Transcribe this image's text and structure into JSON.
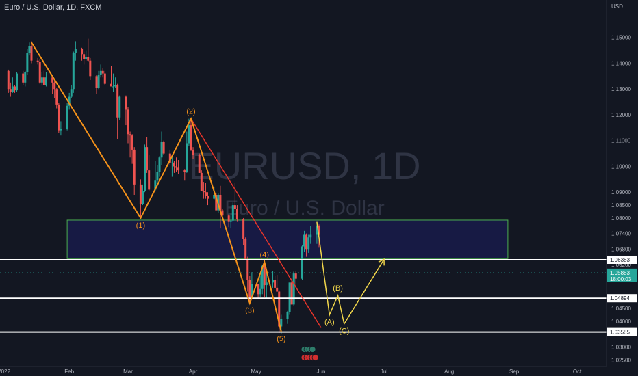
{
  "header": {
    "title": "Euro / U.S. Dollar, 1D, FXCM"
  },
  "chart_data": {
    "type": "candlestick",
    "symbol": "EURUSD",
    "interval": "1D",
    "watermark": {
      "line1": "EURUSD, 1D",
      "line2": "Euro / U.S. Dollar"
    },
    "currency": "USD",
    "ylim": [
      1.0225,
      1.1645
    ],
    "xlim": [
      "2021-12-30",
      "2022-10-15"
    ],
    "y_ticks": [
      1.15,
      1.14,
      1.13,
      1.12,
      1.11,
      1.1,
      1.09,
      1.085,
      1.08,
      1.074,
      1.068,
      1.062,
      1.045,
      1.04,
      1.03,
      1.025
    ],
    "y_tick_labels": [
      "1.15000",
      "1.14000",
      "1.13000",
      "1.12000",
      "1.11000",
      "1.10000",
      "1.09000",
      "1.08500",
      "1.08000",
      "1.07400",
      "1.06800",
      "1.06200",
      "1.04500",
      "1.04000",
      "1.03000",
      "1.02500"
    ],
    "x_ticks": [
      {
        "date": "2022-01-01",
        "label": "2022"
      },
      {
        "date": "2022-02-01",
        "label": "Feb"
      },
      {
        "date": "2022-03-01",
        "label": "Mar"
      },
      {
        "date": "2022-04-01",
        "label": "Apr"
      },
      {
        "date": "2022-05-01",
        "label": "May"
      },
      {
        "date": "2022-06-01",
        "label": "Jun"
      },
      {
        "date": "2022-07-01",
        "label": "Jul"
      },
      {
        "date": "2022-08-01",
        "label": "Aug"
      },
      {
        "date": "2022-09-01",
        "label": "Sep"
      },
      {
        "date": "2022-10-01",
        "label": "Oct"
      }
    ],
    "price_levels": [
      {
        "value": 1.06383,
        "label": "1.06383"
      },
      {
        "value": 1.04894,
        "label": "1.04894"
      },
      {
        "value": 1.03585,
        "label": "1.03585"
      }
    ],
    "current_price": {
      "value": 1.05883,
      "label": "1.05883",
      "countdown": "18:00:03"
    },
    "zone": {
      "from": "2022-01-31",
      "to": "2022-08-29",
      "top": 1.0792,
      "bottom": 1.0643
    },
    "trendline": {
      "start": {
        "date": "2022-03-31",
        "value": 1.1185
      },
      "end": {
        "date": "2022-06-01",
        "value": 1.0375
      }
    },
    "impulse_waves": [
      {
        "date": "2022-01-14",
        "value": 1.148
      },
      {
        "date": "2022-03-07",
        "value": 1.08,
        "label": "(1)"
      },
      {
        "date": "2022-03-31",
        "value": 1.1185,
        "label": "(2)"
      },
      {
        "date": "2022-04-28",
        "value": 1.047,
        "label": "(3)"
      },
      {
        "date": "2022-05-05",
        "value": 1.063,
        "label": "(4)"
      },
      {
        "date": "2022-05-13",
        "value": 1.036,
        "label": "(5)"
      }
    ],
    "corrective_waves": [
      {
        "date": "2022-05-30",
        "value": 1.0785
      },
      {
        "date": "2022-06-05",
        "value": 1.0425,
        "label": "(A)"
      },
      {
        "date": "2022-06-09",
        "value": 1.05,
        "label": "(B)"
      },
      {
        "date": "2022-06-12",
        "value": 1.039,
        "label": "(C)"
      },
      {
        "date": "2022-07-01",
        "value": 1.064
      }
    ],
    "colors": {
      "up": "#26a69a",
      "down": "#ef5350",
      "wave_impulse": "#f7931a",
      "wave_corrective": "#f2d74b",
      "trendline": "#e8352b",
      "zone_border": "#4caf50",
      "zone_fill": "#1a1c50",
      "level": "#ffffff",
      "background": "#131722"
    },
    "candles": [
      {
        "d": "2022-01-03",
        "o": 1.137,
        "h": 1.1375,
        "l": 1.1285,
        "c": 1.13
      },
      {
        "d": "2022-01-04",
        "o": 1.13,
        "h": 1.1325,
        "l": 1.127,
        "c": 1.129
      },
      {
        "d": "2022-01-05",
        "o": 1.129,
        "h": 1.1345,
        "l": 1.1285,
        "c": 1.131
      },
      {
        "d": "2022-01-06",
        "o": 1.131,
        "h": 1.1315,
        "l": 1.1285,
        "c": 1.1295
      },
      {
        "d": "2022-01-07",
        "o": 1.1295,
        "h": 1.1365,
        "l": 1.129,
        "c": 1.136
      },
      {
        "d": "2022-01-10",
        "o": 1.136,
        "h": 1.137,
        "l": 1.1315,
        "c": 1.1325
      },
      {
        "d": "2022-01-11",
        "o": 1.1325,
        "h": 1.137,
        "l": 1.131,
        "c": 1.1365
      },
      {
        "d": "2022-01-12",
        "o": 1.1365,
        "h": 1.1455,
        "l": 1.1355,
        "c": 1.144
      },
      {
        "d": "2022-01-13",
        "o": 1.144,
        "h": 1.148,
        "l": 1.143,
        "c": 1.1465
      },
      {
        "d": "2022-01-14",
        "o": 1.1465,
        "h": 1.1485,
        "l": 1.14,
        "c": 1.141
      },
      {
        "d": "2022-01-17",
        "o": 1.141,
        "h": 1.142,
        "l": 1.1395,
        "c": 1.1405
      },
      {
        "d": "2022-01-18",
        "o": 1.1405,
        "h": 1.1415,
        "l": 1.132,
        "c": 1.1325
      },
      {
        "d": "2022-01-19",
        "o": 1.1325,
        "h": 1.1365,
        "l": 1.1315,
        "c": 1.1345
      },
      {
        "d": "2022-01-20",
        "o": 1.1345,
        "h": 1.137,
        "l": 1.132,
        "c": 1.1315
      },
      {
        "d": "2022-01-21",
        "o": 1.1315,
        "h": 1.1365,
        "l": 1.131,
        "c": 1.1345
      },
      {
        "d": "2022-01-24",
        "o": 1.1345,
        "h": 1.135,
        "l": 1.128,
        "c": 1.1325
      },
      {
        "d": "2022-01-25",
        "o": 1.1325,
        "h": 1.1335,
        "l": 1.1265,
        "c": 1.13
      },
      {
        "d": "2022-01-26",
        "o": 1.13,
        "h": 1.1305,
        "l": 1.1225,
        "c": 1.124
      },
      {
        "d": "2022-01-27",
        "o": 1.124,
        "h": 1.1245,
        "l": 1.113,
        "c": 1.114
      },
      {
        "d": "2022-01-28",
        "o": 1.114,
        "h": 1.1175,
        "l": 1.112,
        "c": 1.1145
      },
      {
        "d": "2022-01-31",
        "o": 1.1145,
        "h": 1.1245,
        "l": 1.114,
        "c": 1.1235
      },
      {
        "d": "2022-02-01",
        "o": 1.1235,
        "h": 1.1285,
        "l": 1.122,
        "c": 1.127
      },
      {
        "d": "2022-02-02",
        "o": 1.127,
        "h": 1.1315,
        "l": 1.1265,
        "c": 1.13
      },
      {
        "d": "2022-02-03",
        "o": 1.13,
        "h": 1.1445,
        "l": 1.1285,
        "c": 1.144
      },
      {
        "d": "2022-02-04",
        "o": 1.144,
        "h": 1.1485,
        "l": 1.141,
        "c": 1.1455
      },
      {
        "d": "2022-02-07",
        "o": 1.1455,
        "h": 1.146,
        "l": 1.141,
        "c": 1.1435
      },
      {
        "d": "2022-02-08",
        "o": 1.1435,
        "h": 1.1445,
        "l": 1.1395,
        "c": 1.1415
      },
      {
        "d": "2022-02-09",
        "o": 1.1415,
        "h": 1.145,
        "l": 1.141,
        "c": 1.1425
      },
      {
        "d": "2022-02-10",
        "o": 1.1425,
        "h": 1.1495,
        "l": 1.1405,
        "c": 1.141
      },
      {
        "d": "2022-02-11",
        "o": 1.141,
        "h": 1.142,
        "l": 1.1335,
        "c": 1.135
      },
      {
        "d": "2022-02-14",
        "o": 1.135,
        "h": 1.1355,
        "l": 1.128,
        "c": 1.1305
      },
      {
        "d": "2022-02-15",
        "o": 1.1305,
        "h": 1.137,
        "l": 1.13,
        "c": 1.1355
      },
      {
        "d": "2022-02-16",
        "o": 1.1355,
        "h": 1.1395,
        "l": 1.1345,
        "c": 1.137
      },
      {
        "d": "2022-02-17",
        "o": 1.137,
        "h": 1.138,
        "l": 1.1345,
        "c": 1.136
      },
      {
        "d": "2022-02-18",
        "o": 1.136,
        "h": 1.137,
        "l": 1.1315,
        "c": 1.132
      },
      {
        "d": "2022-02-21",
        "o": 1.132,
        "h": 1.139,
        "l": 1.131,
        "c": 1.131
      },
      {
        "d": "2022-02-22",
        "o": 1.131,
        "h": 1.136,
        "l": 1.129,
        "c": 1.131
      },
      {
        "d": "2022-02-23",
        "o": 1.131,
        "h": 1.1345,
        "l": 1.1305,
        "c": 1.1315
      },
      {
        "d": "2022-02-24",
        "o": 1.1315,
        "h": 1.132,
        "l": 1.1105,
        "c": 1.119
      },
      {
        "d": "2022-02-25",
        "o": 1.119,
        "h": 1.1275,
        "l": 1.118,
        "c": 1.127
      },
      {
        "d": "2022-02-28",
        "o": 1.127,
        "h": 1.1275,
        "l": 1.116,
        "c": 1.122
      },
      {
        "d": "2022-03-01",
        "o": 1.122,
        "h": 1.123,
        "l": 1.109,
        "c": 1.1125
      },
      {
        "d": "2022-03-02",
        "o": 1.1125,
        "h": 1.1135,
        "l": 1.1035,
        "c": 1.112
      },
      {
        "d": "2022-03-03",
        "o": 1.112,
        "h": 1.1125,
        "l": 1.101,
        "c": 1.1065
      },
      {
        "d": "2022-03-04",
        "o": 1.1065,
        "h": 1.1075,
        "l": 1.089,
        "c": 1.093
      },
      {
        "d": "2022-03-07",
        "o": 1.093,
        "h": 1.095,
        "l": 1.0805,
        "c": 1.0855
      },
      {
        "d": "2022-03-08",
        "o": 1.0855,
        "h": 1.093,
        "l": 1.085,
        "c": 1.0905
      },
      {
        "d": "2022-03-09",
        "o": 1.0905,
        "h": 1.1085,
        "l": 1.09,
        "c": 1.1075
      },
      {
        "d": "2022-03-10",
        "o": 1.1075,
        "h": 1.1115,
        "l": 1.0975,
        "c": 1.0985
      },
      {
        "d": "2022-03-11",
        "o": 1.0985,
        "h": 1.1045,
        "l": 1.0905,
        "c": 1.091
      },
      {
        "d": "2022-03-14",
        "o": 1.091,
        "h": 1.102,
        "l": 1.0905,
        "c": 1.0945
      },
      {
        "d": "2022-03-15",
        "o": 1.0945,
        "h": 1.1005,
        "l": 1.0935,
        "c": 1.098
      },
      {
        "d": "2022-03-16",
        "o": 1.098,
        "h": 1.104,
        "l": 1.096,
        "c": 1.1035
      },
      {
        "d": "2022-03-17",
        "o": 1.1035,
        "h": 1.1135,
        "l": 1.1005,
        "c": 1.1095
      },
      {
        "d": "2022-03-18",
        "o": 1.1095,
        "h": 1.11,
        "l": 1.1045,
        "c": 1.105
      },
      {
        "d": "2022-03-21",
        "o": 1.105,
        "h": 1.1065,
        "l": 1.1005,
        "c": 1.1015
      },
      {
        "d": "2022-03-22",
        "o": 1.1015,
        "h": 1.1045,
        "l": 1.096,
        "c": 1.1015
      },
      {
        "d": "2022-03-23",
        "o": 1.1015,
        "h": 1.102,
        "l": 1.0975,
        "c": 1.1
      },
      {
        "d": "2022-03-24",
        "o": 1.1,
        "h": 1.1035,
        "l": 1.098,
        "c": 1.0995
      },
      {
        "d": "2022-03-25",
        "o": 1.0995,
        "h": 1.1025,
        "l": 1.097,
        "c": 1.0985
      },
      {
        "d": "2022-03-28",
        "o": 1.0985,
        "h": 1.099,
        "l": 1.0945,
        "c": 1.098
      },
      {
        "d": "2022-03-29",
        "o": 1.098,
        "h": 1.1135,
        "l": 1.0975,
        "c": 1.109
      },
      {
        "d": "2022-03-30",
        "o": 1.109,
        "h": 1.1185,
        "l": 1.108,
        "c": 1.116
      },
      {
        "d": "2022-03-31",
        "o": 1.116,
        "h": 1.1185,
        "l": 1.106,
        "c": 1.1065
      },
      {
        "d": "2022-04-01",
        "o": 1.1065,
        "h": 1.1075,
        "l": 1.103,
        "c": 1.1045
      },
      {
        "d": "2022-04-04",
        "o": 1.1045,
        "h": 1.105,
        "l": 1.0975,
        "c": 1.0975
      },
      {
        "d": "2022-04-05",
        "o": 1.0975,
        "h": 1.0985,
        "l": 1.0905,
        "c": 1.0905
      },
      {
        "d": "2022-04-06",
        "o": 1.0905,
        "h": 1.094,
        "l": 1.0875,
        "c": 1.09
      },
      {
        "d": "2022-04-07",
        "o": 1.09,
        "h": 1.0935,
        "l": 1.0875,
        "c": 1.0885
      },
      {
        "d": "2022-04-08",
        "o": 1.0885,
        "h": 1.09,
        "l": 1.085,
        "c": 1.0875
      },
      {
        "d": "2022-04-11",
        "o": 1.0875,
        "h": 1.092,
        "l": 1.087,
        "c": 1.089
      },
      {
        "d": "2022-04-12",
        "o": 1.089,
        "h": 1.0895,
        "l": 1.0835,
        "c": 1.083
      },
      {
        "d": "2022-04-13",
        "o": 1.083,
        "h": 1.0895,
        "l": 1.082,
        "c": 1.089
      },
      {
        "d": "2022-04-14",
        "o": 1.089,
        "h": 1.0925,
        "l": 1.076,
        "c": 1.083
      },
      {
        "d": "2022-04-15",
        "o": 1.083,
        "h": 1.0835,
        "l": 1.08,
        "c": 1.081
      },
      {
        "d": "2022-04-18",
        "o": 1.081,
        "h": 1.0815,
        "l": 1.0765,
        "c": 1.0785
      },
      {
        "d": "2022-04-19",
        "o": 1.0785,
        "h": 1.081,
        "l": 1.076,
        "c": 1.079
      },
      {
        "d": "2022-04-20",
        "o": 1.079,
        "h": 1.086,
        "l": 1.0785,
        "c": 1.085
      },
      {
        "d": "2022-04-21",
        "o": 1.085,
        "h": 1.0935,
        "l": 1.0825,
        "c": 1.0835
      },
      {
        "d": "2022-04-22",
        "o": 1.0835,
        "h": 1.085,
        "l": 1.0785,
        "c": 1.0795
      },
      {
        "d": "2022-04-25",
        "o": 1.0795,
        "h": 1.08,
        "l": 1.0695,
        "c": 1.072
      },
      {
        "d": "2022-04-26",
        "o": 1.072,
        "h": 1.0725,
        "l": 1.064,
        "c": 1.064
      },
      {
        "d": "2022-04-27",
        "o": 1.064,
        "h": 1.065,
        "l": 1.0515,
        "c": 1.056
      },
      {
        "d": "2022-04-28",
        "o": 1.056,
        "h": 1.0575,
        "l": 1.047,
        "c": 1.0495
      },
      {
        "d": "2022-04-29",
        "o": 1.0495,
        "h": 1.059,
        "l": 1.049,
        "c": 1.0545
      },
      {
        "d": "2022-05-02",
        "o": 1.0545,
        "h": 1.0545,
        "l": 1.049,
        "c": 1.0505
      },
      {
        "d": "2022-05-03",
        "o": 1.0505,
        "h": 1.0575,
        "l": 1.0495,
        "c": 1.0525
      },
      {
        "d": "2022-05-04",
        "o": 1.0525,
        "h": 1.062,
        "l": 1.0505,
        "c": 1.0615
      },
      {
        "d": "2022-05-05",
        "o": 1.0615,
        "h": 1.064,
        "l": 1.0495,
        "c": 1.054
      },
      {
        "d": "2022-05-06",
        "o": 1.054,
        "h": 1.0595,
        "l": 1.0485,
        "c": 1.055
      },
      {
        "d": "2022-05-09",
        "o": 1.055,
        "h": 1.0595,
        "l": 1.053,
        "c": 1.056
      },
      {
        "d": "2022-05-10",
        "o": 1.056,
        "h": 1.0575,
        "l": 1.0525,
        "c": 1.053
      },
      {
        "d": "2022-05-11",
        "o": 1.053,
        "h": 1.058,
        "l": 1.0515,
        "c": 1.0515
      },
      {
        "d": "2022-05-12",
        "o": 1.0515,
        "h": 1.052,
        "l": 1.0355,
        "c": 1.038
      },
      {
        "d": "2022-05-13",
        "o": 1.038,
        "h": 1.0425,
        "l": 1.035,
        "c": 1.041
      },
      {
        "d": "2022-05-16",
        "o": 1.041,
        "h": 1.044,
        "l": 1.039,
        "c": 1.0435
      },
      {
        "d": "2022-05-17",
        "o": 1.0435,
        "h": 1.0545,
        "l": 1.0425,
        "c": 1.055
      },
      {
        "d": "2022-05-18",
        "o": 1.055,
        "h": 1.0565,
        "l": 1.0465,
        "c": 1.0465
      },
      {
        "d": "2022-05-19",
        "o": 1.0465,
        "h": 1.0595,
        "l": 1.046,
        "c": 1.0585
      },
      {
        "d": "2022-05-20",
        "o": 1.0585,
        "h": 1.0595,
        "l": 1.053,
        "c": 1.0565
      },
      {
        "d": "2022-05-23",
        "o": 1.0565,
        "h": 1.0695,
        "l": 1.056,
        "c": 1.069
      },
      {
        "d": "2022-05-24",
        "o": 1.069,
        "h": 1.075,
        "l": 1.067,
        "c": 1.0735
      },
      {
        "d": "2022-05-25",
        "o": 1.0735,
        "h": 1.074,
        "l": 1.065,
        "c": 1.068
      },
      {
        "d": "2022-05-26",
        "o": 1.068,
        "h": 1.0735,
        "l": 1.0665,
        "c": 1.0725
      },
      {
        "d": "2022-05-27",
        "o": 1.0725,
        "h": 1.077,
        "l": 1.07,
        "c": 1.0735
      },
      {
        "d": "2022-05-30",
        "o": 1.0735,
        "h": 1.0785,
        "l": 1.07,
        "c": 1.077
      },
      {
        "d": "2022-05-31",
        "o": 1.077,
        "h": 1.0775,
        "l": 1.0685,
        "c": 1.0735
      }
    ]
  }
}
